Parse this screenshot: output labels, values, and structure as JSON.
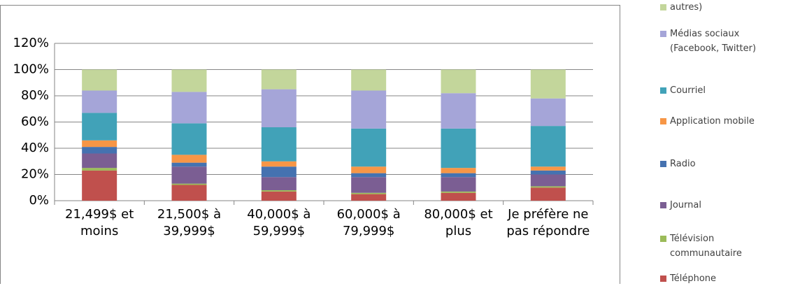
{
  "chart_data": {
    "type": "stacked_bar",
    "categories": [
      "21,499$ et moins",
      "21,500$ à 39,999$",
      "40,000$ à 59,999$",
      "60,000$ à 79,999$",
      "80,000$ et plus",
      "Je préfère ne pas répondre"
    ],
    "series": [
      {
        "name": "Téléphone",
        "color": "#c0504d",
        "values": [
          23,
          12,
          7,
          5,
          6,
          10
        ]
      },
      {
        "name": "Télévision communautaire",
        "color": "#9bbb59",
        "values": [
          2,
          1,
          1,
          1,
          1,
          1
        ]
      },
      {
        "name": "Journal",
        "color": "#7b5e93",
        "values": [
          11,
          13,
          10,
          12,
          11,
          9
        ]
      },
      {
        "name": "Radio",
        "color": "#4572b0",
        "values": [
          5,
          3,
          8,
          3,
          3,
          3
        ]
      },
      {
        "name": "Application mobile",
        "color": "#f79646",
        "values": [
          5,
          6,
          4,
          5,
          4,
          3
        ]
      },
      {
        "name": "Courriel",
        "color": "#41a2b8",
        "values": [
          21,
          24,
          26,
          29,
          30,
          31
        ]
      },
      {
        "name": "Médias sociaux (Facebook, Twitter)",
        "color": "#a5a5d8",
        "values": [
          17,
          24,
          29,
          29,
          27,
          21
        ]
      },
      {
        "name": "autres)",
        "color": "#c3d69b",
        "values": [
          16,
          17,
          15,
          16,
          18,
          22
        ]
      }
    ],
    "ylim": [
      0,
      120
    ],
    "yticks": [
      {
        "value": 0,
        "label": "0%"
      },
      {
        "value": 20,
        "label": "20%"
      },
      {
        "value": 40,
        "label": "40%"
      },
      {
        "value": 60,
        "label": "60%"
      },
      {
        "value": 80,
        "label": "80%"
      },
      {
        "value": 100,
        "label": "100%"
      },
      {
        "value": 120,
        "label": "120%"
      }
    ],
    "grid": true
  }
}
